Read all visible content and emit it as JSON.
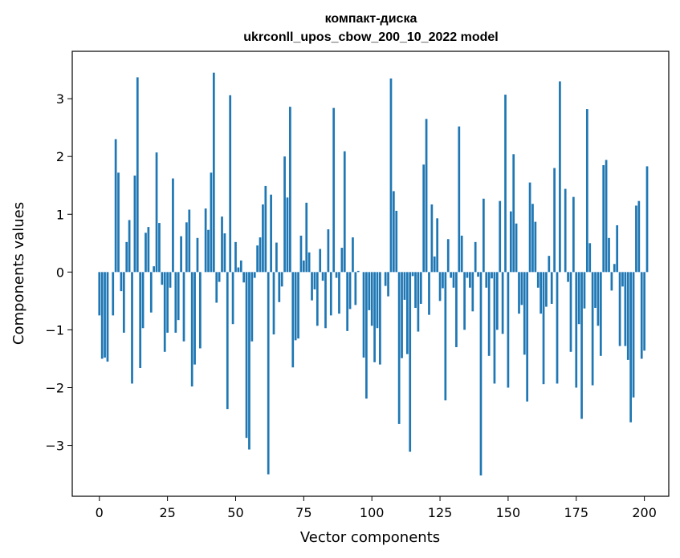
{
  "chart_data": {
    "type": "bar",
    "title_line1": "компакт-диска",
    "title_line2": "ukrconll_upos_cbow_200_10_2022 model",
    "xlabel": "Vector components",
    "ylabel": "Components values",
    "xlim": [
      -9.95,
      208.95
    ],
    "ylim": [
      -3.88,
      3.82
    ],
    "xticks": [
      0,
      25,
      50,
      75,
      100,
      125,
      150,
      175,
      200
    ],
    "yticks": [
      -3,
      -2,
      -1,
      0,
      1,
      2,
      3
    ],
    "ytick_labels": [
      "−3",
      "−2",
      "−1",
      "0",
      "1",
      "2",
      "3"
    ],
    "bar_color": "#1f77b4",
    "grid": false,
    "values": [
      -0.75,
      -1.5,
      -1.48,
      -1.55,
      0.0,
      -0.75,
      2.3,
      1.72,
      -0.33,
      -1.05,
      0.52,
      0.9,
      -1.93,
      1.67,
      3.37,
      -1.66,
      -0.97,
      0.68,
      0.78,
      -0.7,
      0.1,
      2.07,
      0.85,
      -0.22,
      -1.38,
      -1.05,
      -0.27,
      1.62,
      -1.05,
      -0.83,
      0.62,
      -1.2,
      0.86,
      1.08,
      -1.98,
      -1.6,
      0.59,
      -1.32,
      0.0,
      1.1,
      0.73,
      1.72,
      3.45,
      -0.53,
      -0.17,
      0.96,
      0.67,
      -2.37,
      3.06,
      -0.9,
      0.52,
      0.08,
      0.2,
      -0.18,
      -2.87,
      -3.07,
      -1.2,
      -0.1,
      0.46,
      0.6,
      1.17,
      1.49,
      -3.5,
      1.34,
      -1.08,
      0.51,
      -0.52,
      -0.25,
      2.0,
      1.29,
      2.86,
      -1.65,
      -1.18,
      -1.15,
      0.63,
      0.2,
      1.2,
      0.34,
      -0.49,
      -0.3,
      -0.93,
      0.4,
      -0.15,
      -0.97,
      0.74,
      -0.75,
      2.84,
      -0.1,
      -0.72,
      0.42,
      2.09,
      -1.02,
      -0.64,
      0.6,
      -0.57,
      0.02,
      0.0,
      -1.48,
      -2.19,
      -0.66,
      -0.93,
      -1.56,
      -0.97,
      -1.6,
      0.0,
      -0.24,
      -0.42,
      3.35,
      1.4,
      1.06,
      -2.63,
      -1.49,
      -0.48,
      -1.42,
      -3.11,
      -0.07,
      -0.62,
      -1.03,
      -0.55,
      1.86,
      2.65,
      -0.74,
      1.17,
      0.27,
      0.93,
      -0.5,
      -0.28,
      -2.22,
      0.57,
      -0.1,
      -0.27,
      -1.3,
      2.52,
      0.63,
      -1.0,
      -0.1,
      -0.27,
      -0.68,
      0.52,
      -0.08,
      -3.52,
      1.27,
      -0.27,
      -1.45,
      -0.11,
      -1.93,
      -1.0,
      1.23,
      -1.07,
      3.07,
      -2.0,
      1.05,
      2.04,
      0.84,
      -0.72,
      -0.57,
      -1.43,
      -2.24,
      1.55,
      1.18,
      0.87,
      -0.27,
      -0.72,
      -1.94,
      -0.6,
      0.28,
      -0.55,
      1.8,
      -1.93,
      3.3,
      0.0,
      1.44,
      -0.17,
      -1.38,
      1.3,
      -2.0,
      -0.9,
      -2.54,
      -0.63,
      2.82,
      0.5,
      -1.96,
      -0.62,
      -0.93,
      -1.45,
      1.85,
      1.94,
      0.59,
      -0.32,
      0.14,
      0.81,
      -1.28,
      -0.25,
      -1.28,
      -1.52,
      -2.6,
      -2.17,
      1.15,
      1.23,
      -1.5,
      -1.36,
      1.83
    ]
  }
}
